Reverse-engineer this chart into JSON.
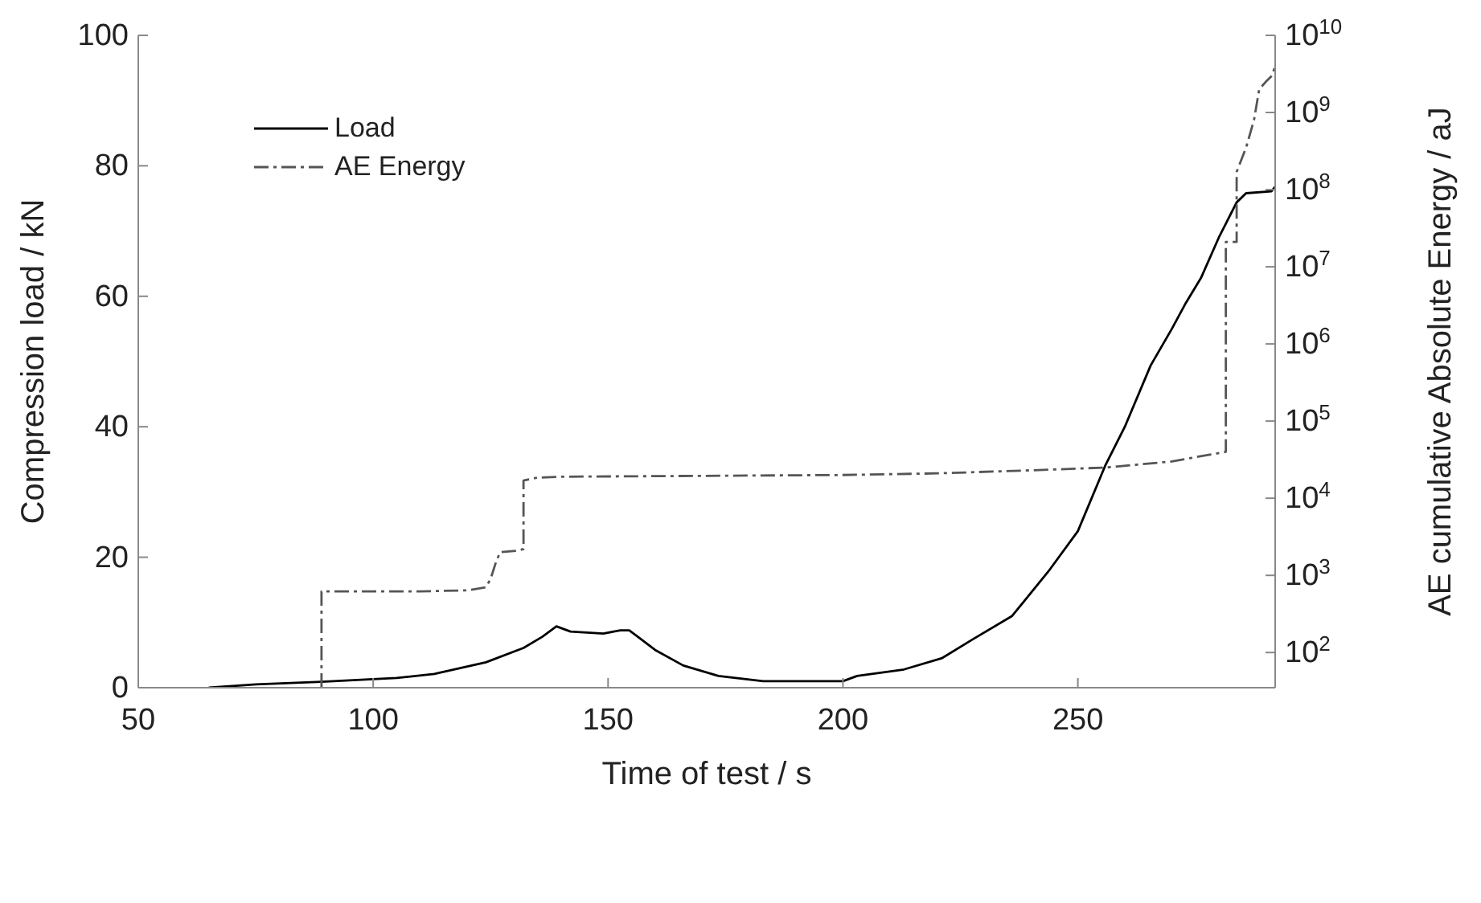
{
  "chart_data": {
    "type": "line",
    "xlabel": "Time of test / s",
    "ylabel": "Compression load / kN",
    "y2label": "AE cumulative Absolute Energy / aJ",
    "xlim": [
      50,
      292
    ],
    "xticks": [
      50,
      100,
      150,
      200,
      250
    ],
    "ylim": [
      0,
      100
    ],
    "yticks": [
      0,
      20,
      40,
      60,
      80,
      100
    ],
    "y2lim": [
      35,
      10000000000
    ],
    "y2ticks": [
      {
        "value": 100,
        "label": "10$^{2}$"
      },
      {
        "value": 1000,
        "label": "10$^{3}$"
      },
      {
        "value": 10000,
        "label": "10$^{4}$"
      },
      {
        "value": 100000,
        "label": "10$^{5}$"
      },
      {
        "value": 1000000,
        "label": "10$^{6}$"
      },
      {
        "value": 10000000,
        "label": "10$^{7}$"
      },
      {
        "value": 100000000,
        "label": "10$^{8}$"
      },
      {
        "value": 1000000000,
        "label": "10$^{9}$"
      },
      {
        "value": 10000000000,
        "label": "10$^{10}$"
      }
    ],
    "log": "y2",
    "legend": "top left",
    "marker": "none",
    "series": [
      {
        "name": "Load",
        "color": "#000000",
        "line_style": "solid",
        "x": [
          65,
          75,
          89,
          105,
          113,
          124,
          132,
          136,
          139,
          142,
          149,
          152.6,
          154.5,
          156,
          160,
          166,
          173.5,
          183,
          200,
          203,
          213,
          221,
          227.6,
          236,
          243.7,
          250,
          255.8,
          260,
          265.5,
          270,
          273,
          276.2,
          280,
          283.8,
          285.8,
          291.2,
          292
        ],
        "values": [
          0,
          0.5,
          0.9,
          1.5,
          2.1,
          3.9,
          6.1,
          7.8,
          9.4,
          8.6,
          8.3,
          8.8,
          8.8,
          8,
          5.8,
          3.4,
          1.8,
          1,
          1,
          1.8,
          2.8,
          4.5,
          7.4,
          11,
          17.8,
          24,
          34,
          40,
          49.4,
          55,
          59,
          62.8,
          69,
          74.4,
          75.8,
          76.1,
          76.8
        ]
      },
      {
        "name": "AE Energy",
        "color": "#555555",
        "line_style": "dashed",
        "axis": "y2",
        "x": [
          89,
          89,
          110,
          120,
          124,
          125,
          126,
          127,
          131,
          132,
          132,
          135,
          140,
          170,
          200,
          220,
          240,
          256,
          270,
          281.5,
          281.5,
          283.8,
          283.8,
          285.8,
          287.5,
          288.6,
          290,
          291.3,
          292
        ],
        "values": [
          35,
          620,
          620,
          640,
          700,
          900,
          1400,
          2000,
          2100,
          2200,
          17000,
          18500,
          19000,
          19500,
          20000,
          21000,
          23000,
          25000,
          30000,
          40000,
          21000000,
          21000000,
          170000000,
          350000000,
          800000000,
          2000000000,
          2500000000,
          3000000000,
          4000000000
        ]
      }
    ]
  }
}
